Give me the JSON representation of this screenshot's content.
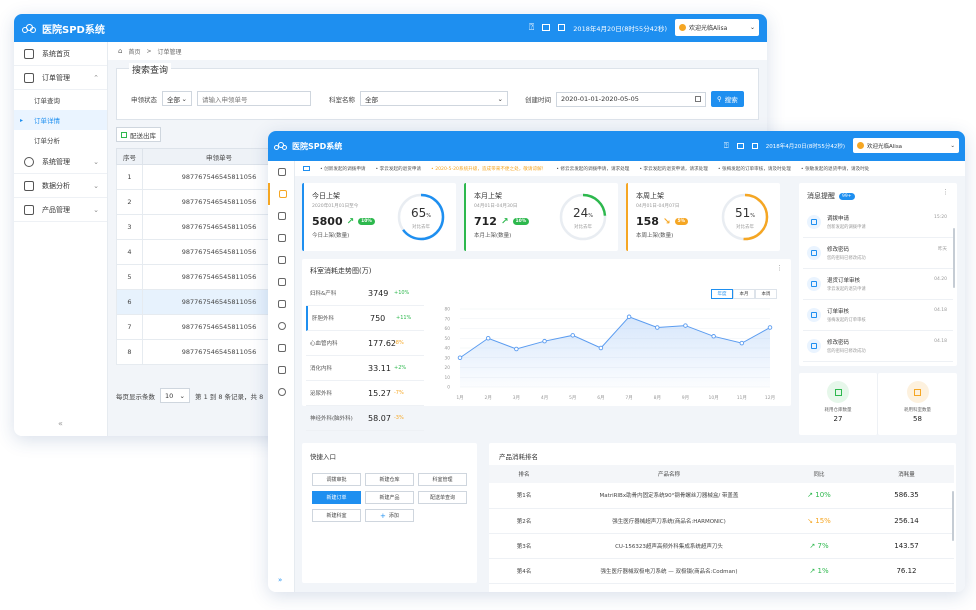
{
  "app": {
    "title": "医院SPD系统"
  },
  "header": {
    "datetime": "2018年4月20日(8时55分42秒)",
    "user": "欢迎光临Alisa"
  },
  "back": {
    "sidebar": [
      {
        "label": "系统首页",
        "icon": "home-icon"
      },
      {
        "label": "订单管理",
        "icon": "order-icon"
      },
      {
        "label": "订单查询"
      },
      {
        "label": "订单详情"
      },
      {
        "label": "订单分析"
      },
      {
        "label": "系统管理",
        "icon": "gear-icon"
      },
      {
        "label": "数据分析",
        "icon": "database-icon"
      },
      {
        "label": "产品管理",
        "icon": "box-icon"
      }
    ],
    "breadcrumb": {
      "home": "首页",
      "current": "订单管理"
    },
    "search": {
      "title": "搜索查询",
      "status_label": "申领状态",
      "status_value": "全部",
      "order_placeholder": "请输入申领单号",
      "category_label": "科室名称",
      "category_value": "全部",
      "date_label": "创建时间",
      "date_value": "2020-01-01-2020-05-05",
      "search_button": "搜索"
    },
    "distribute_button": "配送出库",
    "table": {
      "headers": [
        "序号",
        "申领单号"
      ],
      "rows": [
        [
          "1",
          "987767546545811056"
        ],
        [
          "2",
          "987767546545811056"
        ],
        [
          "3",
          "987767546545811056"
        ],
        [
          "4",
          "987767546545811056"
        ],
        [
          "5",
          "987767546545811056"
        ],
        [
          "6",
          "987767546545811056"
        ],
        [
          "7",
          "987767546545811056"
        ],
        [
          "8",
          "987767546545811056"
        ]
      ]
    },
    "pager": {
      "label": "每页显示条数",
      "size": "10",
      "info": "第 1 到 8 条记录，共 8"
    }
  },
  "front": {
    "ticker": [
      "• 创新发起的调拨申请",
      "• 李云发起的退货申请",
      "• 2020-5-20系统升级，造成带来不便之处，敬请谅解！",
      "• 修云云发起的调拨申请，请求处理",
      "• 李云发起的退货申请，请求处理",
      "• 张梅发起的订单审核，请及时处理",
      "• 张敏发起的退货申请，请及时处"
    ],
    "stats": [
      {
        "title": "今日上架",
        "date": "2020年01月01日至今",
        "value": "5800",
        "badge": "10%",
        "label": "今日上架(数量)",
        "pct": 65,
        "pct_label": "对比去年",
        "color": "#1e8ff0",
        "trend": "up"
      },
      {
        "title": "本月上架",
        "date": "04月01日-04月30日",
        "value": "712",
        "badge": "10%",
        "label": "本月上架(数量)",
        "pct": 24,
        "pct_label": "对比去年",
        "color": "#2db84d",
        "trend": "up"
      },
      {
        "title": "本周上架",
        "date": "04月01日-04月07日",
        "value": "158",
        "badge": "5%",
        "label": "本周上架(数量)",
        "pct": 51,
        "pct_label": "对比去年",
        "color": "#f5a623",
        "trend": "down"
      }
    ],
    "trend": {
      "title": "科室消耗走势图(万)",
      "items": [
        {
          "name": "妇科&产科",
          "value": "3749",
          "change": "+10%",
          "color": "#2db84d"
        },
        {
          "name": "肝胆外科",
          "value": "750",
          "change": "+11%",
          "color": "#2db84d"
        },
        {
          "name": "心血管内科",
          "value": "177.62",
          "change": "-8%",
          "color": "#f5a623"
        },
        {
          "name": "消化内科",
          "value": "33.11",
          "change": "+2%",
          "color": "#2db84d"
        },
        {
          "name": "泌尿外科",
          "value": "15.27",
          "change": "-7%",
          "color": "#f5a623"
        },
        {
          "name": "神经外科(脑外科)",
          "value": "58.07",
          "change": "-3%",
          "color": "#f5a623"
        }
      ],
      "tabs": [
        "年度",
        "本月",
        "本周"
      ]
    },
    "chart_data": {
      "type": "area",
      "categories": [
        "1月",
        "2月",
        "3月",
        "4月",
        "5月",
        "6月",
        "7月",
        "8月",
        "9月",
        "10月",
        "11月",
        "12月"
      ],
      "values": [
        30,
        50,
        39,
        47,
        53,
        40,
        72,
        61,
        63,
        52,
        45,
        61
      ],
      "ylim": [
        0,
        80
      ],
      "yticks": [
        0,
        10,
        20,
        30,
        40,
        50,
        60,
        70,
        80
      ],
      "grid": true,
      "color": "#5b9cf0"
    },
    "messages": {
      "title": "消息提醒",
      "count": "99+",
      "items": [
        {
          "title": "调拨申请",
          "desc": "创新发起的调拨申请",
          "time": "15:20",
          "icon": "transfer-icon"
        },
        {
          "title": "修改密码",
          "desc": "您的密码已修改成功",
          "time": "昨天",
          "icon": "lock-icon"
        },
        {
          "title": "退货订单审核",
          "desc": "李云发起的退货申请",
          "time": "04.20",
          "icon": "return-icon"
        },
        {
          "title": "订单审核",
          "desc": "张梅发起的订单审核",
          "time": "04.18",
          "icon": "audit-icon"
        },
        {
          "title": "修改密码",
          "desc": "您的密码已修改成功",
          "time": "04.18",
          "icon": "lock-icon"
        }
      ]
    },
    "minis": [
      {
        "label": "耗用仓库数量",
        "value": "27",
        "color": "#2db84d",
        "bg": "#e6f7ea",
        "icon": "warehouse-icon"
      },
      {
        "label": "耗用科室数量",
        "value": "58",
        "color": "#f5a623",
        "bg": "#fdf1de",
        "icon": "department-icon"
      }
    ],
    "quick": {
      "title": "快捷入口",
      "buttons": [
        "调拨审批",
        "新建仓库",
        "科室管理",
        "新建订单",
        "新建产品",
        "配送单查询",
        "新建科室",
        "添加"
      ]
    },
    "ranking": {
      "title": "产品消耗排名",
      "headers": [
        "排名",
        "产品名称",
        "同比",
        "消耗量"
      ],
      "rows": [
        {
          "rank": "第1名",
          "name": "MatriRIBx助骨内固定系统90°钢骨螺丝刀器械盒/ 带盖盖",
          "change": "10%",
          "trend": "up",
          "value": "586.35"
        },
        {
          "rank": "第2名",
          "name": "强生医疗器械超声刀系统(商品名:HARMONIC)",
          "change": "15%",
          "trend": "down",
          "value": "256.14"
        },
        {
          "rank": "第3名",
          "name": "CU-156323超声高频外科集成系统超声刀头",
          "change": "7%",
          "trend": "up",
          "value": "143.57"
        },
        {
          "rank": "第4名",
          "name": "强生医疗器械双极电刀系统 — 双极镊(商品名:Codman)",
          "change": "1%",
          "trend": "up",
          "value": "76.12"
        }
      ]
    }
  }
}
